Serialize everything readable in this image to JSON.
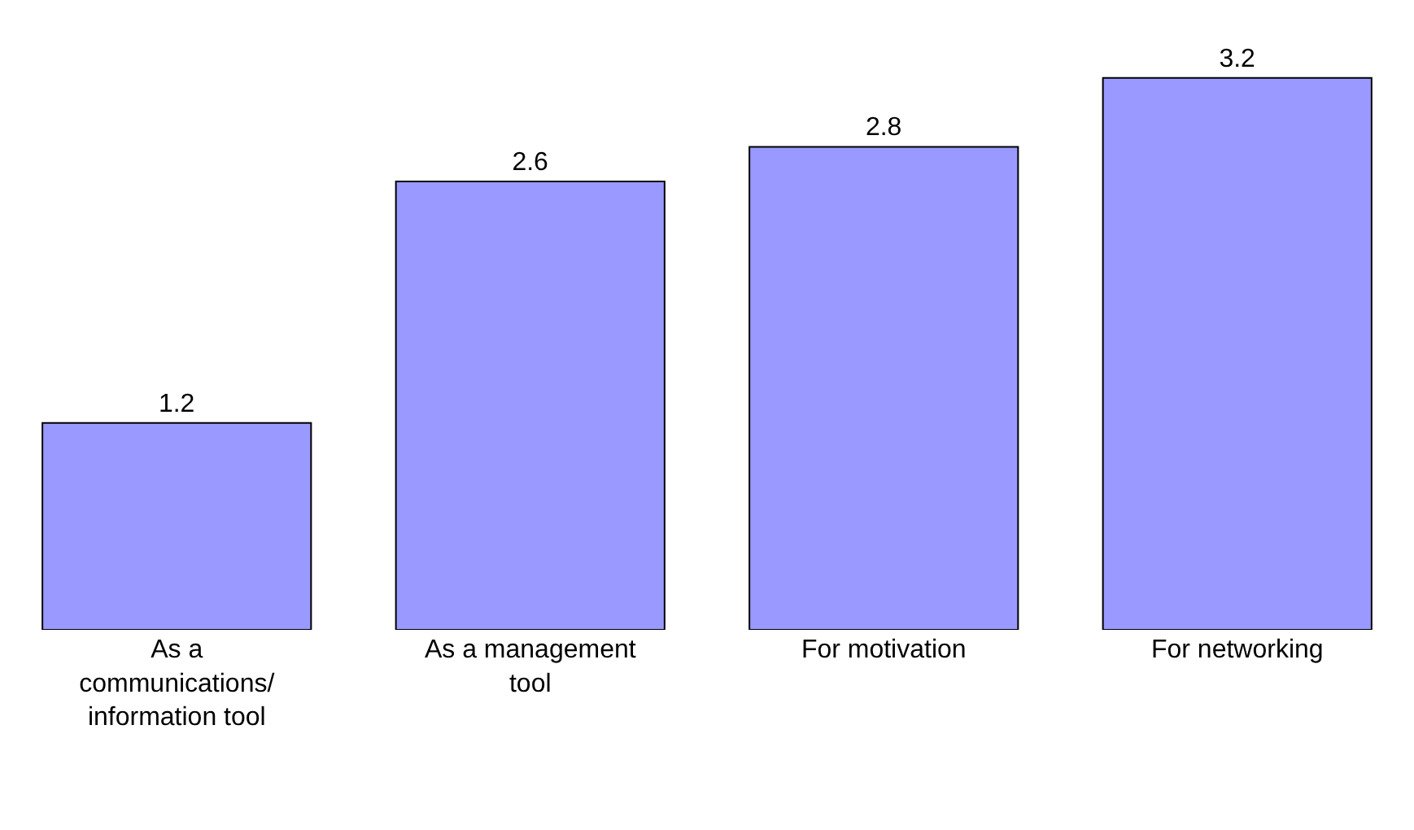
{
  "chart_data": {
    "type": "bar",
    "categories": [
      "As a communications/ information tool",
      "As a management tool",
      "For motivation",
      "For networking"
    ],
    "values": [
      1.2,
      2.6,
      2.8,
      3.2
    ],
    "color": "#9999ff",
    "data_labels": true,
    "legend": false
  }
}
